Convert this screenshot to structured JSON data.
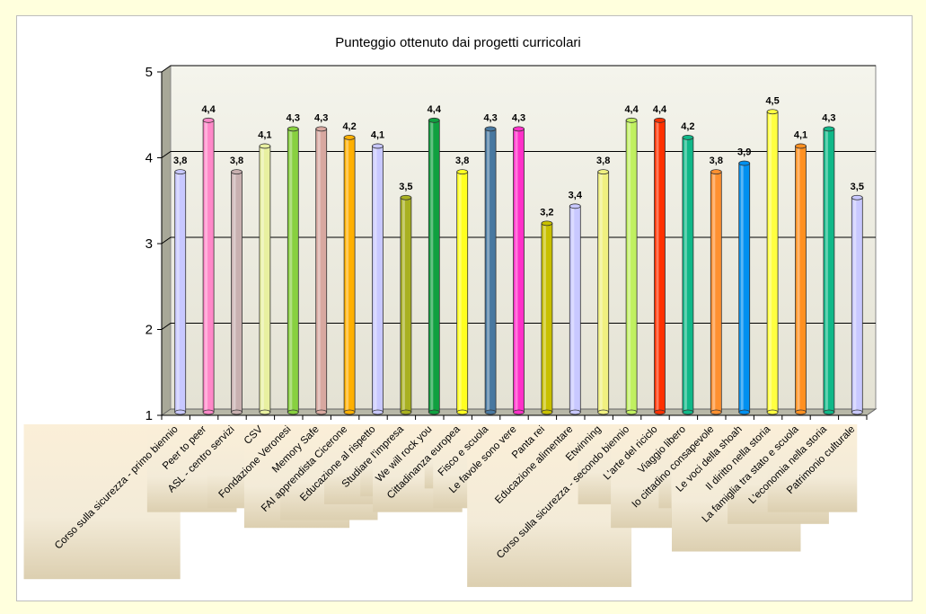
{
  "chart_data": {
    "type": "bar",
    "title": "Punteggio ottenuto dai progetti curricolari",
    "xlabel": "",
    "ylabel": "",
    "ylim": [
      1,
      5
    ],
    "yticks": [
      "1",
      "2",
      "3",
      "4",
      "5"
    ],
    "grid": true,
    "style": "3d-cylinder",
    "categories": [
      "Corso sulla sicurezza - primo biennio",
      "Peer to peer",
      "ASL - centro servizi",
      "CSV",
      "Fondazione Veronesi",
      "Memory Safe",
      "FAI apprendista Cicerone",
      "Educazione al rispetto",
      "Studiare l'impresa",
      "We will rock you",
      "Cittadinanza europea",
      "Fisco e scuola",
      "Le favole sono vere",
      "Panta rei",
      "Educazione alimentare",
      "Etwinning",
      "Corso sulla sicurezza - secondo biennio",
      "L'arte del riciclo",
      "Viaggio libero",
      "Io cittadino consapevole",
      "Le voci della shoah",
      "Il diritto nella storia",
      "La famiglia tra stato e scuola",
      "L'economia nella storia",
      "Patrimonio culturale"
    ],
    "values": [
      3.8,
      4.4,
      3.8,
      4.1,
      4.3,
      4.3,
      4.2,
      4.1,
      3.5,
      4.4,
      3.8,
      4.3,
      4.3,
      3.2,
      3.4,
      3.8,
      4.4,
      4.4,
      4.2,
      3.8,
      3.9,
      4.5,
      4.1,
      4.3,
      3.5
    ],
    "data_labels": [
      "3,8",
      "4,4",
      "3,8",
      "4,1",
      "4,3",
      "4,3",
      "4,2",
      "4,1",
      "3,5",
      "4,4",
      "3,8",
      "4,3",
      "4,3",
      "3,2",
      "3,4",
      "3,8",
      "4,4",
      "4,4",
      "4,2",
      "3,8",
      "3,9",
      "4,5",
      "4,1",
      "4,3",
      "3,5"
    ],
    "colors": [
      "#c8c8ff",
      "#ff88c8",
      "#c8b0b0",
      "#e8f0a0",
      "#88d040",
      "#d8a8a0",
      "#ffb000",
      "#c8c8ff",
      "#a8b020",
      "#10a040",
      "#ffff20",
      "#4878a0",
      "#ff30c8",
      "#c8c000",
      "#c8c8ff",
      "#f0f080",
      "#c0f060",
      "#ff3000",
      "#10b888",
      "#ff9030",
      "#0090f0",
      "#ffff40",
      "#ff9020",
      "#10b888",
      "#c8c8ff"
    ]
  }
}
